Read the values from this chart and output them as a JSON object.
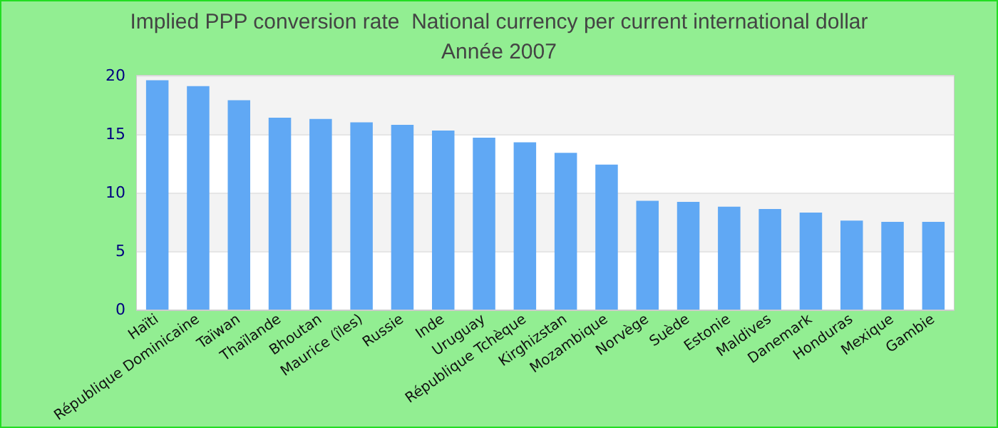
{
  "chart_data": {
    "type": "bar",
    "title": "Implied PPP conversion rate  National currency per current international dollar",
    "subtitle": "Année 2007",
    "categories": [
      "Haïti",
      "République Dominicaine",
      "Taïwan",
      "Thaïlande",
      "Bhoutan",
      "Maurice (îles)",
      "Russie",
      "Inde",
      "Uruguay",
      "République Tchèque",
      "Kirghizstan",
      "Mozambique",
      "Norvège",
      "Suède",
      "Estonie",
      "Maldives",
      "Danemark",
      "Honduras",
      "Mexique",
      "Gambie"
    ],
    "values": [
      19.6,
      19.1,
      17.9,
      16.4,
      16.3,
      16.0,
      15.8,
      15.3,
      14.7,
      14.3,
      13.4,
      12.4,
      9.3,
      9.2,
      8.8,
      8.6,
      8.3,
      7.6,
      7.5,
      7.5
    ],
    "color": "#60a8f4",
    "ylim": [
      0,
      20
    ],
    "yticks": [
      0,
      5,
      10,
      15,
      20
    ],
    "grid": "y"
  }
}
